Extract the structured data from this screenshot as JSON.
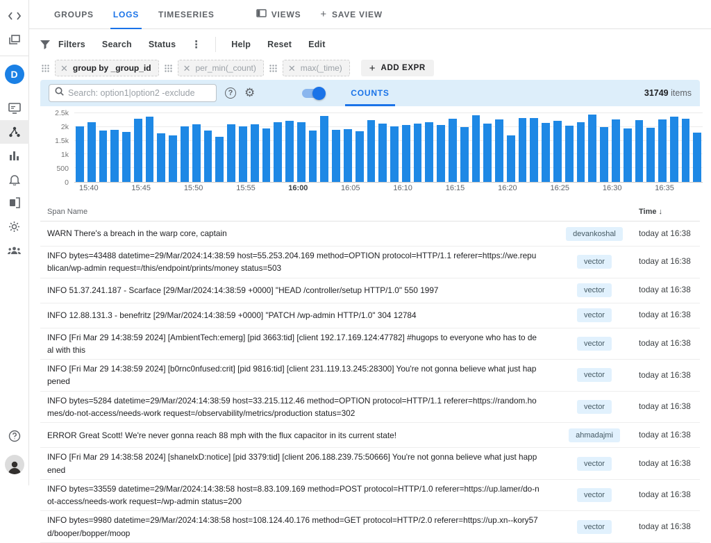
{
  "colors": {
    "accent": "#1a73e8",
    "bar": "#1e88e5",
    "panel_bg": "#ddeefa",
    "badge_bg": "#e1f1fd"
  },
  "topbar": {
    "tabs": [
      {
        "label": "GROUPS",
        "active": false
      },
      {
        "label": "LOGS",
        "active": true
      },
      {
        "label": "TIMESERIES",
        "active": false
      }
    ],
    "views_label": "VIEWS",
    "save_view_label": "SAVE VIEW"
  },
  "filterbar": {
    "filters_label": "Filters",
    "search_label": "Search",
    "status_label": "Status",
    "more_glyph": "⋮",
    "help_label": "Help",
    "reset_label": "Reset",
    "edit_label": "Edit"
  },
  "expressions": {
    "chips": [
      "group by _group_id",
      "per_min(_count)",
      "max(_time)"
    ],
    "add_label": "ADD EXPR"
  },
  "toolbar": {
    "search_placeholder": "Search: option1|option2 -exclude",
    "counts_tab": "COUNTS",
    "items_count": "31749",
    "items_label": "items"
  },
  "chart_data": {
    "type": "bar",
    "title": "",
    "xlabel": "",
    "ylabel": "",
    "ylim": [
      0,
      2500
    ],
    "grid": true,
    "y_ticks": [
      "0",
      "500",
      "1k",
      "1.5k",
      "2k",
      "2.5k"
    ],
    "x_ticks": [
      {
        "label": "15:40",
        "bold": false
      },
      {
        "label": "15:45",
        "bold": false
      },
      {
        "label": "15:50",
        "bold": false
      },
      {
        "label": "15:55",
        "bold": false
      },
      {
        "label": "16:00",
        "bold": true
      },
      {
        "label": "16:05",
        "bold": false
      },
      {
        "label": "16:10",
        "bold": false
      },
      {
        "label": "16:15",
        "bold": false
      },
      {
        "label": "16:20",
        "bold": false
      },
      {
        "label": "16:25",
        "bold": false
      },
      {
        "label": "16:30",
        "bold": false
      },
      {
        "label": "16:35",
        "bold": false
      }
    ],
    "values": [
      2030,
      2160,
      1860,
      1890,
      1810,
      2290,
      2370,
      1770,
      1690,
      2020,
      2090,
      1860,
      1650,
      2090,
      2020,
      2090,
      1950,
      2160,
      2230,
      2160,
      1880,
      2400,
      1900,
      1920,
      1850,
      2250,
      2130,
      2030,
      2080,
      2110,
      2180,
      2060,
      2300,
      2000,
      2430,
      2120,
      2280,
      1700,
      2330,
      2320,
      2150,
      2230,
      2040,
      2180,
      2450,
      2000,
      2280,
      1950,
      2250,
      1970,
      2270,
      2380,
      2290,
      1800
    ]
  },
  "table": {
    "columns": {
      "span_name": "Span Name",
      "time": "Time",
      "sort_glyph": "↓"
    },
    "rows": [
      {
        "text": "WARN There's a breach in the warp core, captain",
        "tag": "devankoshal",
        "time": "today at 16:38"
      },
      {
        "text": "INFO bytes=43488 datetime=29/Mar/2024:14:38:59 host=55.253.204.169 method=OPTION protocol=HTTP/1.1 referer=https://we.republican/wp-admin request=/this/endpoint/prints/money status=503",
        "tag": "vector",
        "time": "today at 16:38"
      },
      {
        "text": "INFO 51.37.241.187 - Scarface [29/Mar/2024:14:38:59 +0000] \"HEAD /controller/setup HTTP/1.0\" 550 1997",
        "tag": "vector",
        "time": "today at 16:38"
      },
      {
        "text": "INFO 12.88.131.3 - benefritz [29/Mar/2024:14:38:59 +0000] \"PATCH /wp-admin HTTP/1.0\" 304 12784",
        "tag": "vector",
        "time": "today at 16:38"
      },
      {
        "text": "INFO [Fri Mar 29 14:38:59 2024] [AmbientTech:emerg] [pid 3663:tid] [client 192.17.169.124:47782] #hugops to everyone who has to deal with this",
        "tag": "vector",
        "time": "today at 16:38"
      },
      {
        "text": "INFO [Fri Mar 29 14:38:59 2024] [b0rnc0nfused:crit] [pid 9816:tid] [client 231.119.13.245:28300] You're not gonna believe what just happened",
        "tag": "vector",
        "time": "today at 16:38"
      },
      {
        "text": "INFO bytes=5284 datetime=29/Mar/2024:14:38:59 host=33.215.112.46 method=OPTION protocol=HTTP/1.1 referer=https://random.homes/do-not-access/needs-work request=/observability/metrics/production status=302",
        "tag": "vector",
        "time": "today at 16:38"
      },
      {
        "text": "ERROR Great Scott! We're never gonna reach 88 mph with the flux capacitor in its current state!",
        "tag": "ahmadajmi",
        "time": "today at 16:38"
      },
      {
        "text": "INFO [Fri Mar 29 14:38:58 2024] [shanelxD:notice] [pid 3379:tid] [client 206.188.239.75:50666] You're not gonna believe what just happened",
        "tag": "vector",
        "time": "today at 16:38"
      },
      {
        "text": "INFO bytes=33559 datetime=29/Mar/2024:14:38:58 host=8.83.109.169 method=POST protocol=HTTP/1.0 referer=https://up.lamer/do-not-access/needs-work request=/wp-admin status=200",
        "tag": "vector",
        "time": "today at 16:38"
      },
      {
        "text": "INFO bytes=9980 datetime=29/Mar/2024:14:38:58 host=108.124.40.176 method=GET protocol=HTTP/2.0 referer=https://up.xn--kory57d/booper/bopper/moop",
        "tag": "vector",
        "time": "today at 16:38"
      }
    ]
  }
}
